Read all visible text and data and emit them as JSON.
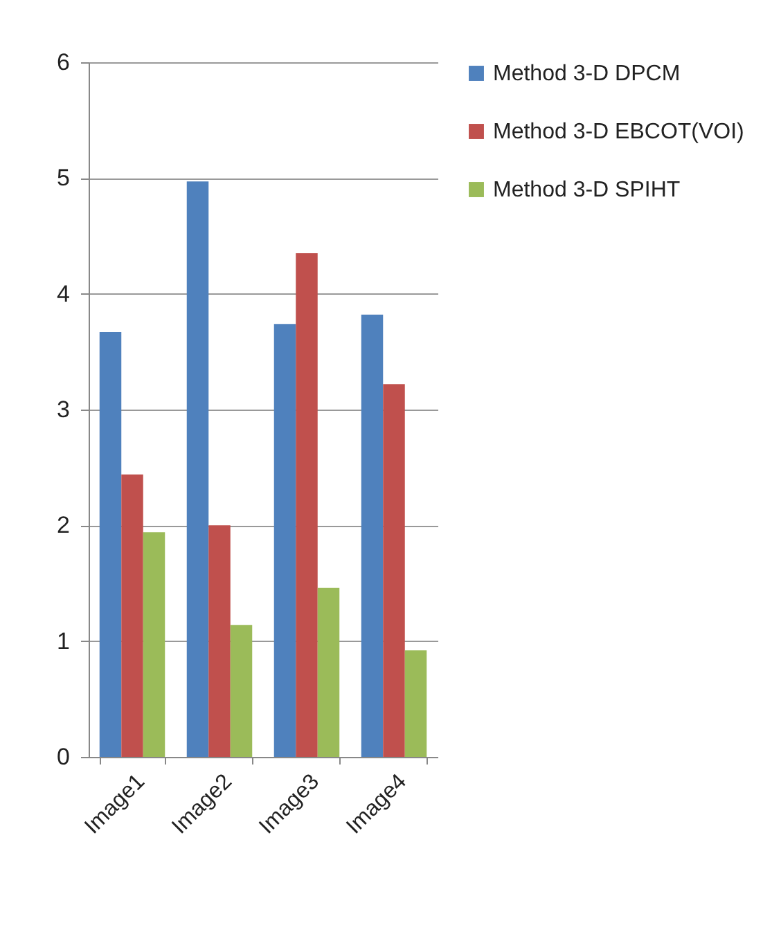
{
  "chart_data": {
    "type": "bar",
    "categories": [
      "Image1",
      "Image2",
      "Image3",
      "Image4"
    ],
    "series": [
      {
        "name": "Method 3-D DPCM",
        "color": "#4f81bd",
        "values": [
          3.67,
          4.97,
          3.74,
          3.82
        ]
      },
      {
        "name": "Method 3-D EBCOT(VOI)",
        "color": "#c0504d",
        "values": [
          2.44,
          2.0,
          4.35,
          3.22
        ]
      },
      {
        "name": "Method 3-D SPIHT",
        "color": "#9bbb59",
        "values": [
          1.94,
          1.14,
          1.46,
          0.92
        ]
      }
    ],
    "ylim": [
      0,
      6
    ],
    "yticks": [
      0,
      1,
      2,
      3,
      4,
      5,
      6
    ],
    "grid": "y",
    "legend": "right"
  }
}
